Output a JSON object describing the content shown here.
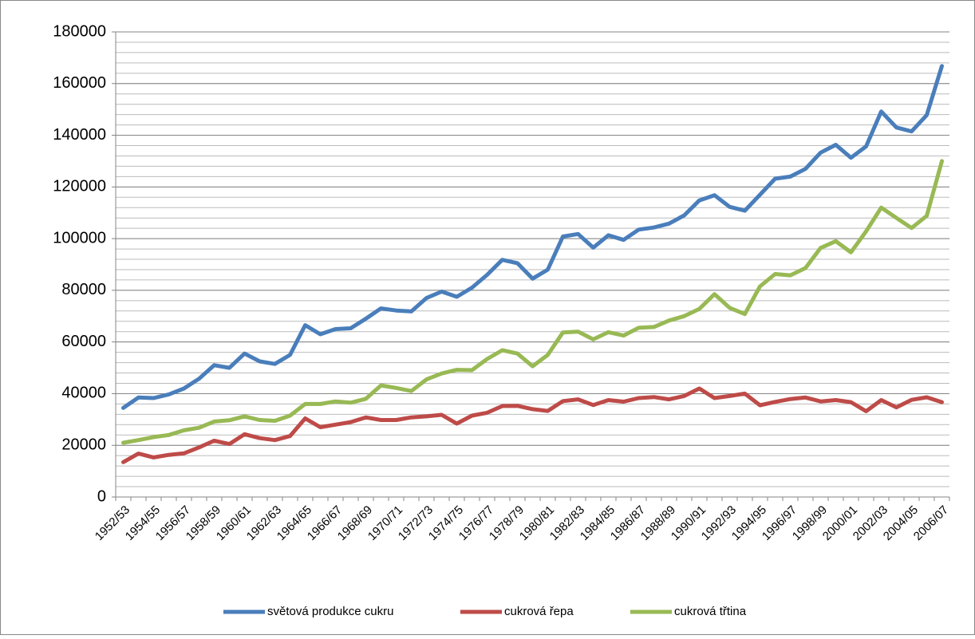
{
  "chart_data": {
    "type": "line",
    "categories": [
      "1952/53",
      null,
      "1954/55",
      null,
      "1956/57",
      null,
      "1958/59",
      null,
      "1960/61",
      null,
      "1962/63",
      null,
      "1964/65",
      null,
      "1966/67",
      null,
      "1968/69",
      null,
      "1970/71",
      null,
      "1972/73",
      null,
      "1974/75",
      null,
      "1976/77",
      null,
      "1978/79",
      null,
      "1980/81",
      null,
      "1982/83",
      null,
      "1984/85",
      null,
      "1986/87",
      null,
      "1988/89",
      null,
      "1990/91",
      null,
      "1992/93",
      null,
      "1994/95",
      null,
      "1996/97",
      null,
      "1998/99",
      null,
      "2000/01",
      null,
      "2002/03",
      null,
      "2004/05",
      null,
      "2006/07"
    ],
    "series": [
      {
        "name": "světová produkce cukru",
        "color": "#4a7ebb",
        "values": [
          34500,
          38500,
          38300,
          39700,
          42000,
          45800,
          51000,
          50000,
          55500,
          52500,
          51500,
          55000,
          66500,
          63000,
          65000,
          65300,
          69000,
          73000,
          72200,
          71800,
          77000,
          79500,
          77500,
          81000,
          86000,
          91800,
          90500,
          84500,
          88000,
          100800,
          101800,
          96500,
          101300,
          99500,
          103500,
          104300,
          105800,
          109000,
          114800,
          116800,
          112300,
          110800,
          117000,
          123200,
          124000,
          127000,
          133300,
          136300,
          131300,
          135700,
          149200,
          143000,
          141500,
          147800,
          166800
        ]
      },
      {
        "name": "cukrová řepa",
        "color": "#be4b48",
        "values": [
          13500,
          16800,
          15300,
          16300,
          16900,
          19200,
          21800,
          20500,
          24300,
          22800,
          22000,
          23600,
          30400,
          27000,
          28000,
          29000,
          30800,
          29800,
          29800,
          30800,
          31200,
          31800,
          28400,
          31500,
          32600,
          35200,
          35300,
          34000,
          33300,
          37100,
          37800,
          35600,
          37500,
          36900,
          38300,
          38700,
          37800,
          39100,
          42000,
          38300,
          39100,
          40000,
          35500,
          36800,
          37900,
          38500,
          37000,
          37500,
          36700,
          33200,
          37500,
          34700,
          37600,
          38600,
          36700
        ]
      },
      {
        "name": "cukrová třtina",
        "color": "#98b954",
        "values": [
          21000,
          22000,
          23200,
          24000,
          25800,
          26800,
          29200,
          29700,
          31200,
          29800,
          29500,
          31500,
          36000,
          36000,
          37000,
          36500,
          38000,
          43200,
          42200,
          41000,
          45500,
          47800,
          49200,
          49100,
          53400,
          56800,
          55500,
          50600,
          55000,
          63700,
          64000,
          61000,
          63800,
          62500,
          65500,
          65800,
          68300,
          70000,
          72800,
          78500,
          73200,
          70800,
          81500,
          86300,
          85800,
          88600,
          96400,
          99000,
          94700,
          102800,
          112000,
          108000,
          104100,
          108800,
          130000
        ]
      }
    ],
    "ylim": [
      0,
      180000
    ],
    "yticks": [
      0,
      20000,
      40000,
      60000,
      80000,
      100000,
      120000,
      140000,
      160000,
      180000
    ],
    "yminor_step": 4000,
    "grid": true,
    "legend": "bottom"
  }
}
